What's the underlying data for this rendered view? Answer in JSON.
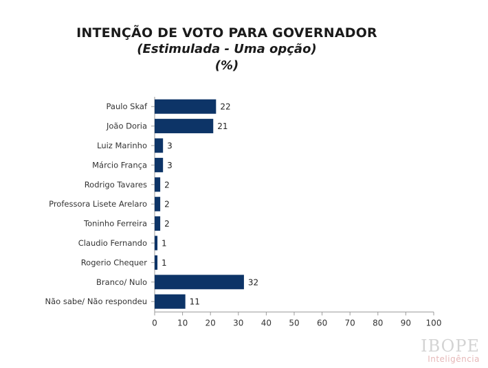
{
  "title": "INTENÇÃO DE VOTO PARA GOVERNADOR",
  "subtitle": "(Estimulada - Uma opção)",
  "unit_label": "(%)",
  "logo": {
    "name": "IBOPE",
    "sub": "Inteligência"
  },
  "colors": {
    "bar": "#0d3467",
    "axis": "#9a9a9a",
    "text": "#333333"
  },
  "chart_data": {
    "type": "bar",
    "orientation": "horizontal",
    "title": "INTENÇÃO DE VOTO PARA GOVERNADOR",
    "subtitle": "(Estimulada - Uma opção)",
    "categories": [
      "Paulo Skaf",
      "João Doria",
      "Luiz Marinho",
      "Márcio França",
      "Rodrigo Tavares",
      "Professora Lisete Arelaro",
      "Toninho Ferreira",
      "Claudio Fernando",
      "Rogerio Chequer",
      "Branco/ Nulo",
      "Não sabe/ Não respondeu"
    ],
    "values": [
      22,
      21,
      3,
      3,
      2,
      2,
      2,
      1,
      1,
      32,
      11
    ],
    "xlim": [
      0,
      100
    ],
    "xticks": [
      0,
      10,
      20,
      30,
      40,
      50,
      60,
      70,
      80,
      90,
      100
    ],
    "grid": false,
    "legend": false
  }
}
